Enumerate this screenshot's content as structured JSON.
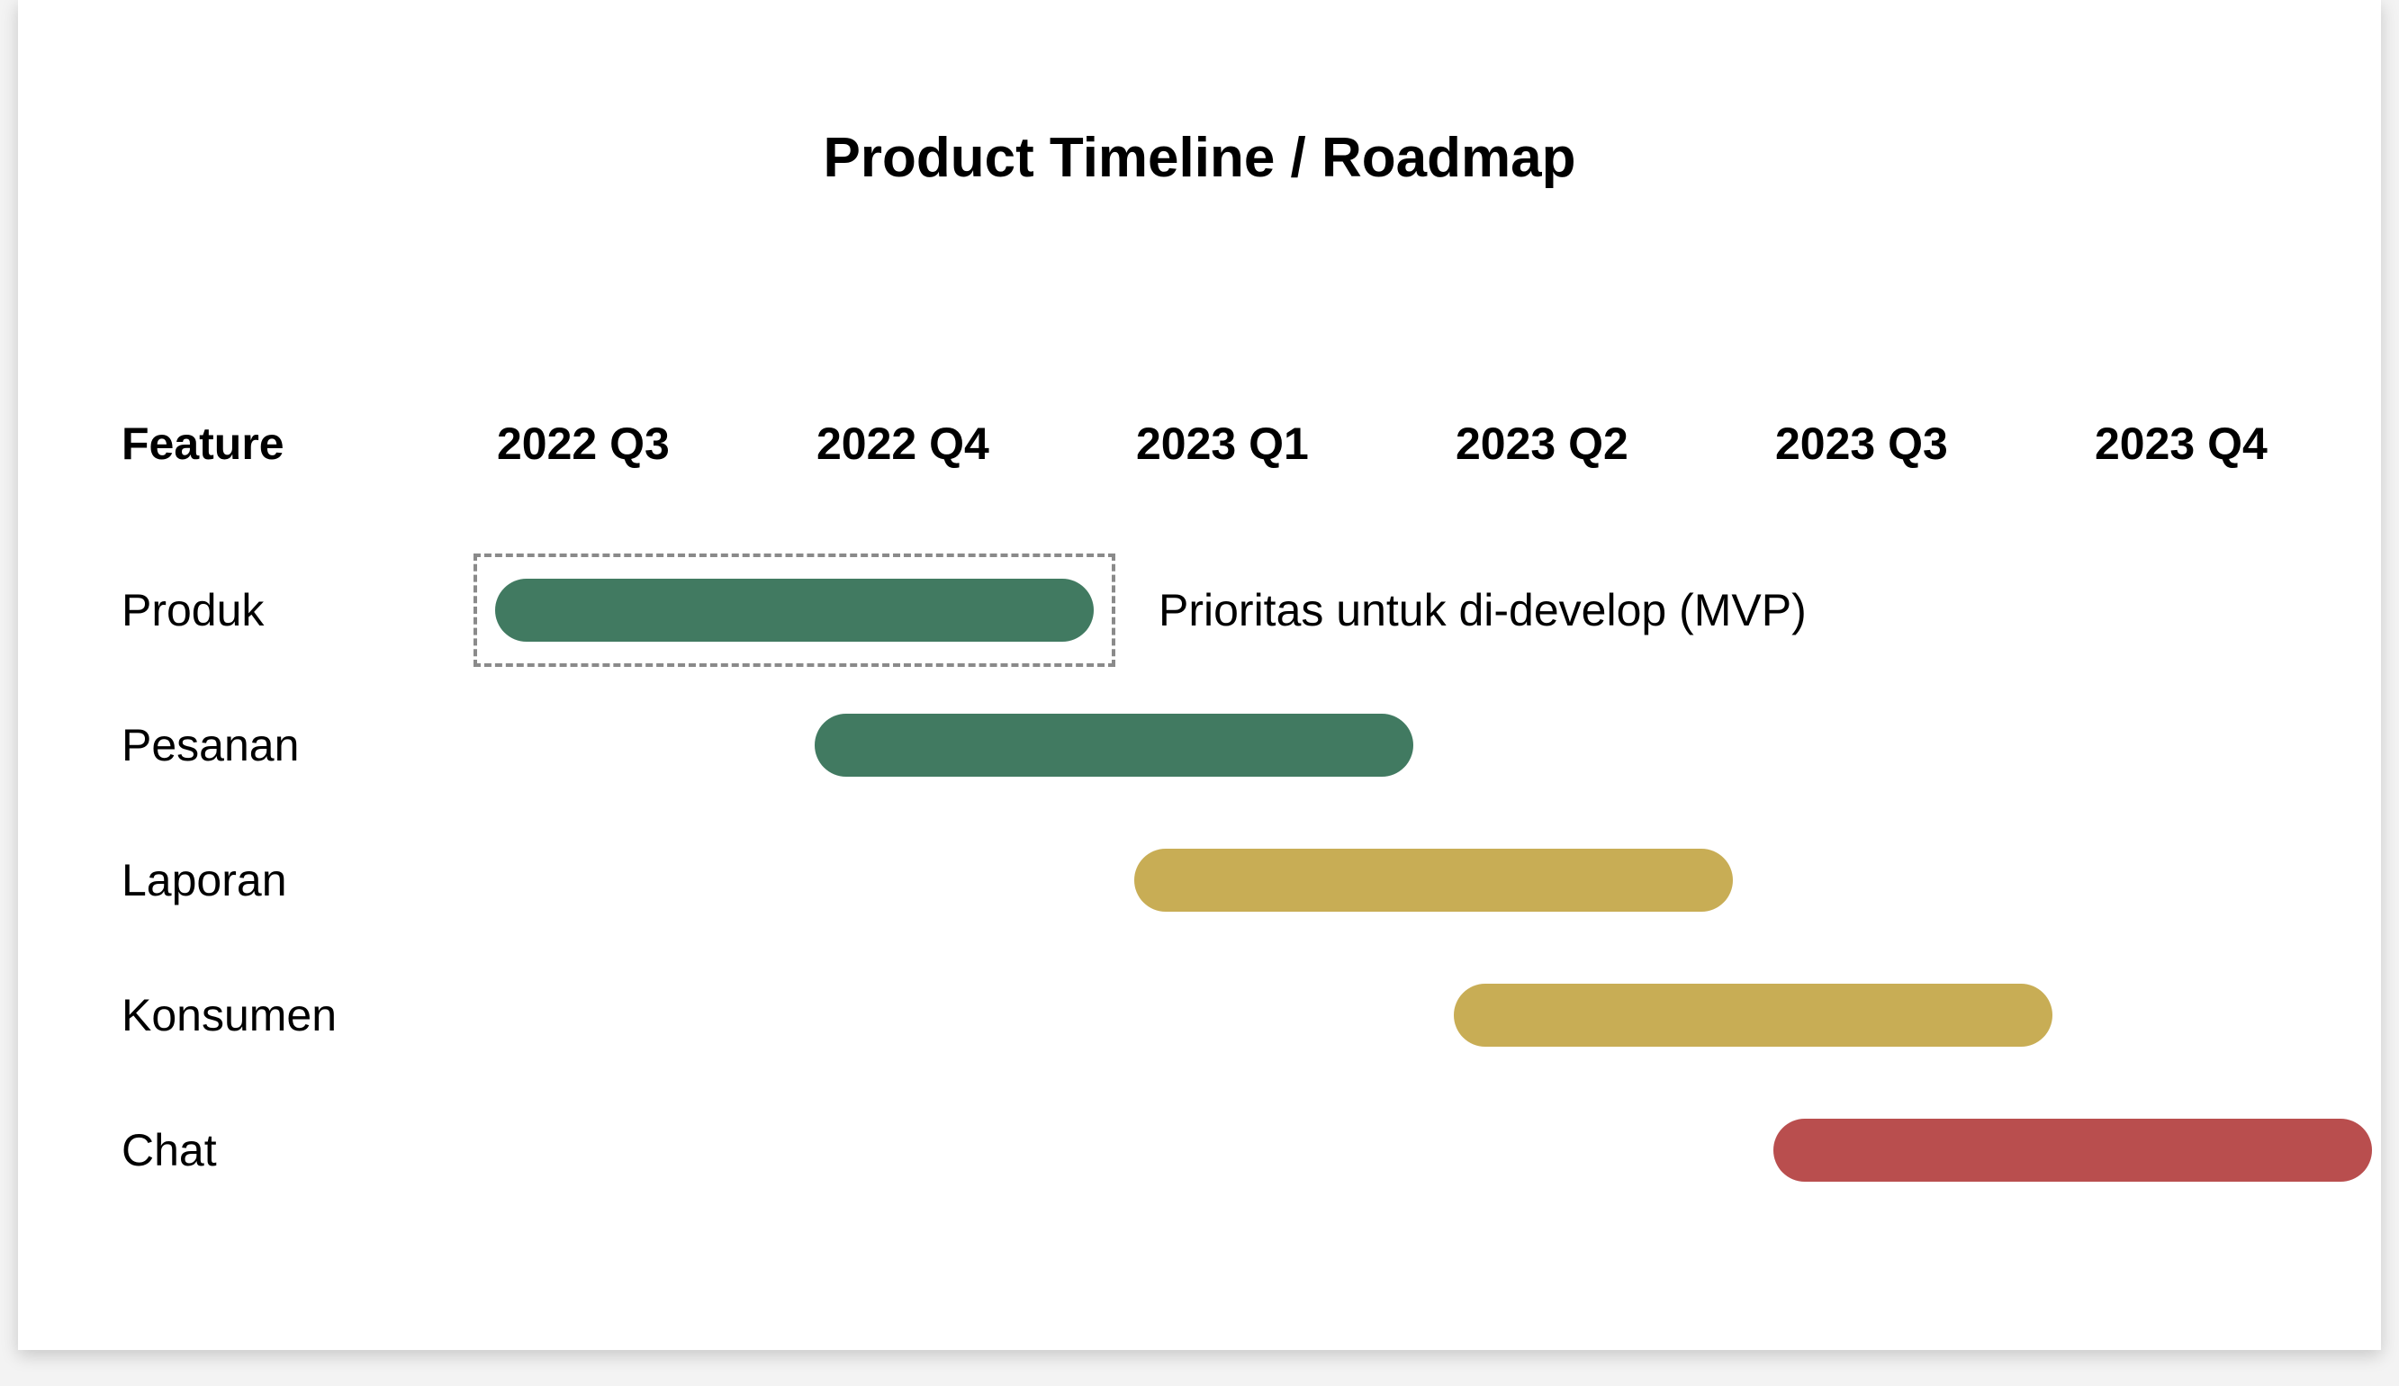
{
  "chart_data": {
    "type": "gantt",
    "title": "Product Timeline / Roadmap",
    "feature_header": "Feature",
    "periods": [
      "2022 Q3",
      "2022 Q4",
      "2023 Q1",
      "2023 Q2",
      "2023 Q3",
      "2023 Q4"
    ],
    "tasks": [
      {
        "label": "Produk",
        "start": "2022 Q3",
        "end": "2022 Q4",
        "color": "#417a61"
      },
      {
        "label": "Pesanan",
        "start": "2022 Q4",
        "end": "2023 Q1",
        "color": "#417a61"
      },
      {
        "label": "Laporan",
        "start": "2023 Q1",
        "end": "2023 Q2",
        "color": "#c8ad55"
      },
      {
        "label": "Konsumen",
        "start": "2023 Q2",
        "end": "2023 Q3",
        "color": "#c8ad55"
      },
      {
        "label": "Chat",
        "start": "2023 Q3",
        "end": "2023 Q4",
        "color": "#b94e4e"
      }
    ],
    "annotation": {
      "task": "Produk",
      "text": "Prioritas untuk di-develop (MVP)"
    }
  }
}
